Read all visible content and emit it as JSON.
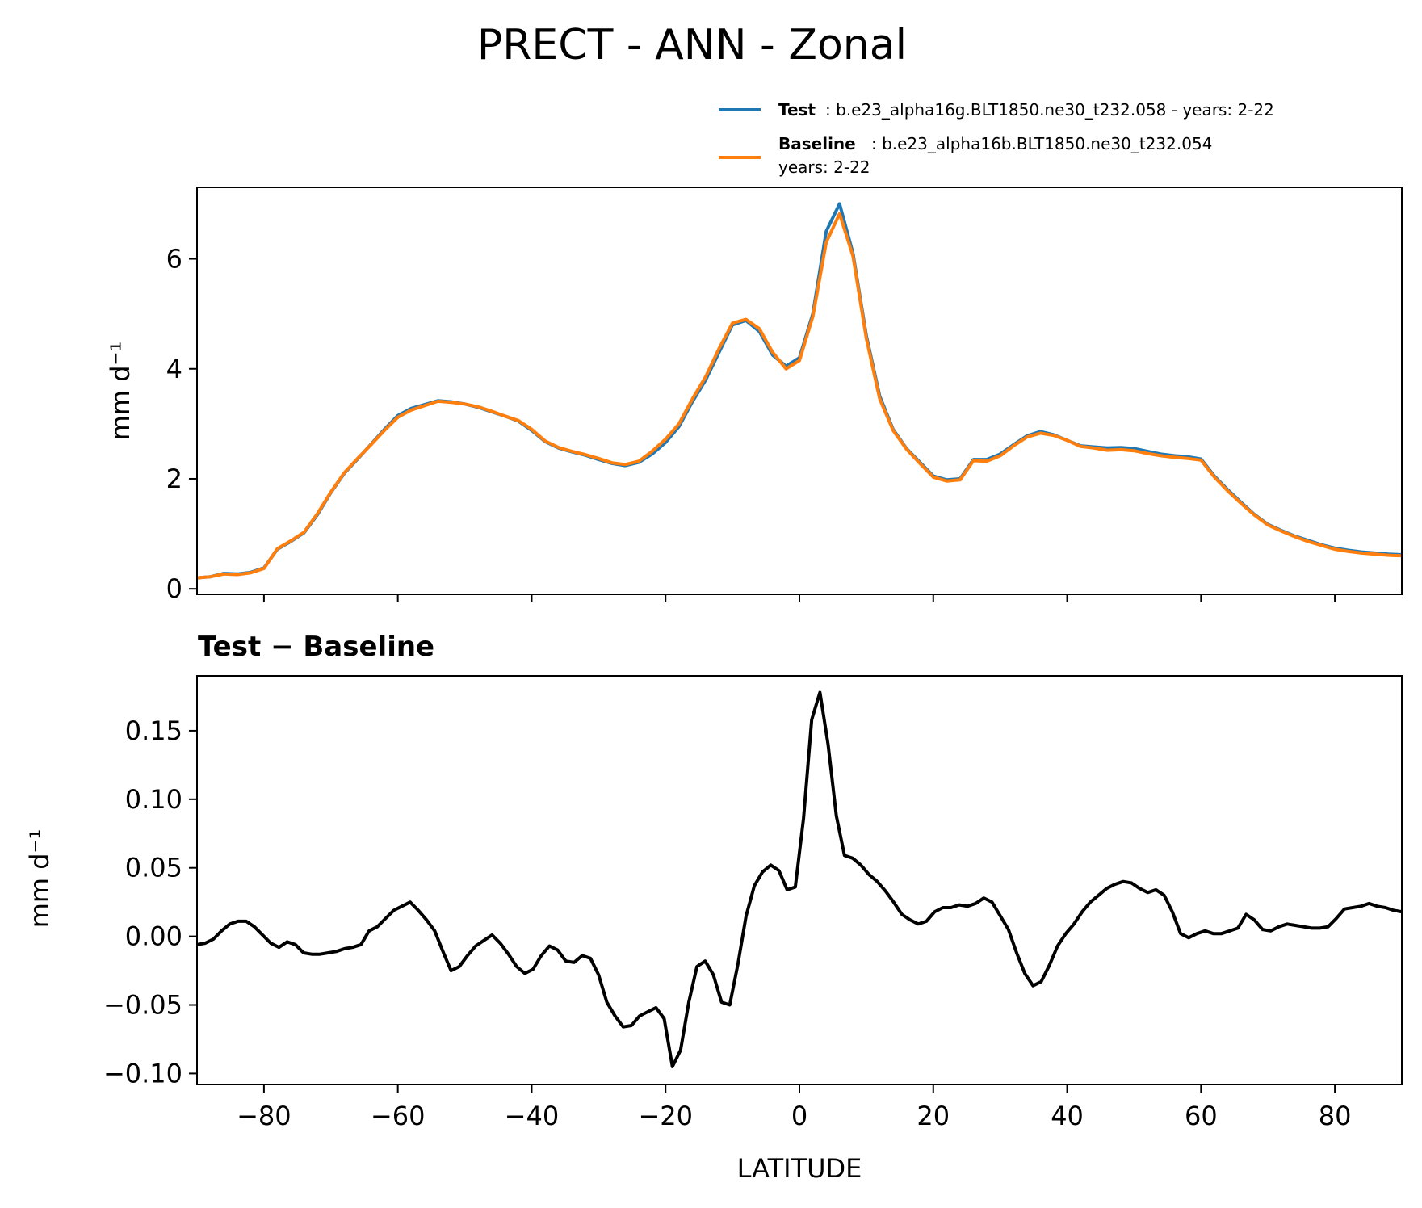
{
  "chart_data": [
    {
      "type": "line",
      "title": "PRECT - ANN - Zonal",
      "xlabel": "",
      "ylabel": "mm d⁻¹",
      "xlim": [
        -90,
        90
      ],
      "ylim": [
        -0.1,
        7.3
      ],
      "xticks": [
        -80,
        -60,
        -40,
        -20,
        0,
        20,
        40,
        60,
        80
      ],
      "yticks": [
        0,
        2,
        4,
        6
      ],
      "ytick_labels": [
        "0",
        "2",
        "4",
        "6"
      ],
      "legend": {
        "position": "above-top-right",
        "entries": [
          {
            "name": "Test",
            "detail": ": b.e23_alpha16g.BLT1850.ne30_t232.058 - years: 2-22",
            "detail2": "",
            "color": "#1f77b4"
          },
          {
            "name": "Baseline",
            "detail": ": b.e23_alpha16b.BLT1850.ne30_t232.054",
            "detail2": "years: 2-22",
            "color": "#ff7f0e"
          }
        ]
      },
      "x": [
        -90,
        -88,
        -86,
        -84,
        -82,
        -80,
        -78,
        -76,
        -74,
        -72,
        -70,
        -68,
        -66,
        -64,
        -62,
        -60,
        -58,
        -56,
        -54,
        -52,
        -50,
        -48,
        -46,
        -44,
        -42,
        -40,
        -38,
        -36,
        -34,
        -32,
        -30,
        -28,
        -26,
        -24,
        -22,
        -20,
        -18,
        -16,
        -14,
        -12,
        -10,
        -8,
        -6,
        -4,
        -2,
        0,
        2,
        4,
        6,
        8,
        10,
        12,
        14,
        16,
        18,
        20,
        22,
        24,
        26,
        28,
        30,
        32,
        34,
        36,
        38,
        40,
        42,
        44,
        46,
        48,
        50,
        52,
        54,
        56,
        58,
        60,
        62,
        64,
        66,
        68,
        70,
        72,
        74,
        76,
        78,
        80,
        82,
        84,
        86,
        88,
        90
      ],
      "series": [
        {
          "name": "Test",
          "color": "#1f77b4",
          "values": [
            0.2,
            0.22,
            0.28,
            0.27,
            0.3,
            0.38,
            0.72,
            0.86,
            1.02,
            1.35,
            1.75,
            2.1,
            2.36,
            2.63,
            2.9,
            3.15,
            3.28,
            3.35,
            3.42,
            3.4,
            3.36,
            3.3,
            3.22,
            3.14,
            3.05,
            2.88,
            2.68,
            2.56,
            2.49,
            2.43,
            2.35,
            2.28,
            2.24,
            2.3,
            2.45,
            2.66,
            2.95,
            3.4,
            3.8,
            4.3,
            4.8,
            4.88,
            4.68,
            4.25,
            4.05,
            4.2,
            5.0,
            6.5,
            7.0,
            6.1,
            4.6,
            3.5,
            2.9,
            2.55,
            2.3,
            2.05,
            1.98,
            2.0,
            2.35,
            2.35,
            2.45,
            2.62,
            2.78,
            2.86,
            2.8,
            2.7,
            2.6,
            2.58,
            2.56,
            2.57,
            2.55,
            2.5,
            2.45,
            2.42,
            2.4,
            2.36,
            2.05,
            1.8,
            1.57,
            1.35,
            1.17,
            1.06,
            0.96,
            0.88,
            0.8,
            0.74,
            0.7,
            0.67,
            0.65,
            0.63,
            0.62
          ]
        },
        {
          "name": "Baseline",
          "color": "#ff7f0e",
          "values": [
            0.2,
            0.22,
            0.27,
            0.26,
            0.29,
            0.37,
            0.73,
            0.87,
            1.03,
            1.37,
            1.76,
            2.11,
            2.37,
            2.62,
            2.88,
            3.12,
            3.25,
            3.33,
            3.41,
            3.39,
            3.36,
            3.31,
            3.23,
            3.14,
            3.06,
            2.9,
            2.69,
            2.57,
            2.5,
            2.44,
            2.37,
            2.29,
            2.26,
            2.32,
            2.5,
            2.72,
            3.0,
            3.45,
            3.86,
            4.37,
            4.83,
            4.9,
            4.73,
            4.3,
            4.0,
            4.15,
            4.95,
            6.3,
            6.82,
            6.05,
            4.55,
            3.45,
            2.88,
            2.54,
            2.28,
            2.03,
            1.96,
            1.98,
            2.33,
            2.32,
            2.42,
            2.6,
            2.76,
            2.83,
            2.79,
            2.7,
            2.59,
            2.56,
            2.52,
            2.53,
            2.51,
            2.46,
            2.42,
            2.39,
            2.37,
            2.34,
            2.03,
            1.78,
            1.55,
            1.34,
            1.16,
            1.05,
            0.95,
            0.86,
            0.79,
            0.72,
            0.68,
            0.65,
            0.63,
            0.61,
            0.6
          ]
        }
      ]
    },
    {
      "type": "line",
      "title": "Test − Baseline",
      "xlabel": "LATITUDE",
      "ylabel": "mm d⁻¹",
      "xlim": [
        -90,
        90
      ],
      "ylim": [
        -0.108,
        0.19
      ],
      "xticks": [
        -80,
        -60,
        -40,
        -20,
        0,
        20,
        40,
        60,
        80
      ],
      "xtick_labels": [
        "−80",
        "−60",
        "−40",
        "−20",
        "0",
        "20",
        "40",
        "60",
        "80"
      ],
      "yticks": [
        -0.1,
        -0.05,
        0.0,
        0.05,
        0.1,
        0.15
      ],
      "ytick_labels": [
        "−0.10",
        "−0.05",
        "0.00",
        "0.05",
        "0.10",
        "0.15"
      ],
      "series": [
        {
          "name": "Test − Baseline",
          "color": "#000000",
          "values": [
            -0.006,
            -0.005,
            -0.002,
            0.004,
            0.009,
            0.011,
            0.011,
            0.007,
            0.001,
            -0.005,
            -0.008,
            -0.004,
            -0.006,
            -0.012,
            -0.013,
            -0.013,
            -0.012,
            -0.011,
            -0.009,
            -0.008,
            -0.006,
            0.004,
            0.007,
            0.013,
            0.019,
            0.022,
            0.025,
            0.019,
            0.012,
            0.004,
            -0.011,
            -0.025,
            -0.022,
            -0.014,
            -0.007,
            -0.003,
            0.001,
            -0.005,
            -0.013,
            -0.022,
            -0.027,
            -0.024,
            -0.014,
            -0.007,
            -0.01,
            -0.018,
            -0.019,
            -0.014,
            -0.016,
            -0.028,
            -0.048,
            -0.058,
            -0.066,
            -0.065,
            -0.058,
            -0.055,
            -0.052,
            -0.06,
            -0.095,
            -0.083,
            -0.048,
            -0.022,
            -0.018,
            -0.028,
            -0.048,
            -0.05,
            -0.02,
            0.015,
            0.037,
            0.047,
            0.052,
            0.048,
            0.034,
            0.036,
            0.086,
            0.158,
            0.178,
            0.14,
            0.088,
            0.059,
            0.057,
            0.052,
            0.045,
            0.04,
            0.033,
            0.025,
            0.016,
            0.012,
            0.009,
            0.011,
            0.018,
            0.021,
            0.021,
            0.023,
            0.022,
            0.024,
            0.028,
            0.025,
            0.015,
            0.005,
            -0.012,
            -0.027,
            -0.036,
            -0.033,
            -0.021,
            -0.007,
            0.002,
            0.009,
            0.018,
            0.025,
            0.03,
            0.035,
            0.038,
            0.04,
            0.039,
            0.035,
            0.032,
            0.034,
            0.03,
            0.018,
            0.002,
            -0.001,
            0.002,
            0.004,
            0.002,
            0.002,
            0.004,
            0.006,
            0.016,
            0.012,
            0.005,
            0.004,
            0.007,
            0.009,
            0.008,
            0.007,
            0.006,
            0.006,
            0.007,
            0.013,
            0.02,
            0.021,
            0.022,
            0.024,
            0.022,
            0.021,
            0.019,
            0.018
          ]
        }
      ]
    }
  ]
}
